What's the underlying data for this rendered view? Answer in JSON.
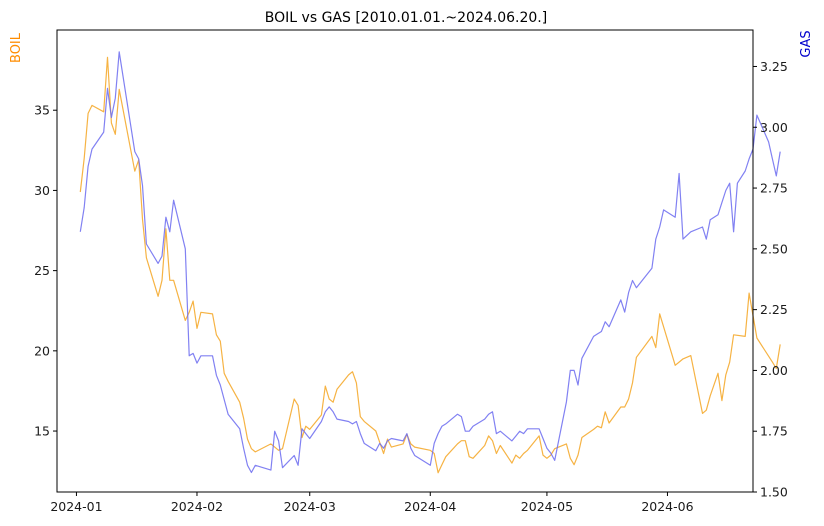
{
  "chart_data": {
    "type": "line",
    "title": "BOIL vs GAS [2010.01.01.~2024.06.20.]",
    "xlabel": "",
    "x_ticks": [
      "2024-01",
      "2024-02",
      "2024-03",
      "2024-04",
      "2024-05",
      "2024-06"
    ],
    "x_range": [
      "2023-12-27",
      "2024-06-23"
    ],
    "left_axis": {
      "label": "BOIL",
      "color": "#ff8c00",
      "ylim": [
        11.2,
        40.0
      ],
      "ticks": [
        15,
        20,
        25,
        30,
        35
      ]
    },
    "right_axis": {
      "label": "GAS",
      "color": "#0000cd",
      "ylim": [
        1.5,
        3.4
      ],
      "ticks": [
        "1.50",
        "1.75",
        "2.00",
        "2.25",
        "2.50",
        "2.75",
        "3.00",
        "3.25"
      ]
    },
    "grid": false,
    "series": [
      {
        "name": "BOIL",
        "axis": "left",
        "color": "#f5a623",
        "points": [
          [
            "2024-01-02",
            29.9
          ],
          [
            "2024-01-03",
            32.0
          ],
          [
            "2024-01-04",
            34.8
          ],
          [
            "2024-01-05",
            35.3
          ],
          [
            "2024-01-08",
            34.9
          ],
          [
            "2024-01-09",
            38.3
          ],
          [
            "2024-01-10",
            34.2
          ],
          [
            "2024-01-11",
            33.5
          ],
          [
            "2024-01-12",
            36.3
          ],
          [
            "2024-01-16",
            31.2
          ],
          [
            "2024-01-17",
            31.9
          ],
          [
            "2024-01-18",
            28.2
          ],
          [
            "2024-01-19",
            25.8
          ],
          [
            "2024-01-22",
            23.4
          ],
          [
            "2024-01-23",
            24.4
          ],
          [
            "2024-01-24",
            27.6
          ],
          [
            "2024-01-25",
            24.4
          ],
          [
            "2024-01-26",
            24.4
          ],
          [
            "2024-01-29",
            21.9
          ],
          [
            "2024-01-30",
            22.4
          ],
          [
            "2024-01-31",
            23.1
          ],
          [
            "2024-02-01",
            21.4
          ],
          [
            "2024-02-02",
            22.4
          ],
          [
            "2024-02-05",
            22.3
          ],
          [
            "2024-02-06",
            21.0
          ],
          [
            "2024-02-07",
            20.6
          ],
          [
            "2024-02-08",
            18.6
          ],
          [
            "2024-02-09",
            18.1
          ],
          [
            "2024-02-12",
            16.8
          ],
          [
            "2024-02-13",
            15.8
          ],
          [
            "2024-02-14",
            14.5
          ],
          [
            "2024-02-15",
            13.9
          ],
          [
            "2024-02-16",
            13.7
          ],
          [
            "2024-02-20",
            14.2
          ],
          [
            "2024-02-21",
            14.0
          ],
          [
            "2024-02-22",
            13.8
          ],
          [
            "2024-02-23",
            13.9
          ],
          [
            "2024-02-26",
            17.0
          ],
          [
            "2024-02-27",
            16.6
          ],
          [
            "2024-02-28",
            14.6
          ],
          [
            "2024-02-29",
            15.3
          ],
          [
            "2024-03-01",
            15.1
          ],
          [
            "2024-03-04",
            16.0
          ],
          [
            "2024-03-05",
            17.8
          ],
          [
            "2024-03-06",
            17.0
          ],
          [
            "2024-03-07",
            16.8
          ],
          [
            "2024-03-08",
            17.6
          ],
          [
            "2024-03-11",
            18.5
          ],
          [
            "2024-03-12",
            18.7
          ],
          [
            "2024-03-13",
            18.0
          ],
          [
            "2024-03-14",
            15.9
          ],
          [
            "2024-03-15",
            15.6
          ],
          [
            "2024-03-18",
            15.0
          ],
          [
            "2024-03-19",
            14.3
          ],
          [
            "2024-03-20",
            13.6
          ],
          [
            "2024-03-21",
            14.5
          ],
          [
            "2024-03-22",
            14.0
          ],
          [
            "2024-03-25",
            14.2
          ],
          [
            "2024-03-26",
            14.8
          ],
          [
            "2024-03-27",
            14.2
          ],
          [
            "2024-03-28",
            14.0
          ],
          [
            "2024-04-01",
            13.8
          ],
          [
            "2024-04-02",
            13.6
          ],
          [
            "2024-04-03",
            12.4
          ],
          [
            "2024-04-04",
            12.9
          ],
          [
            "2024-04-05",
            13.4
          ],
          [
            "2024-04-08",
            14.2
          ],
          [
            "2024-04-09",
            14.4
          ],
          [
            "2024-04-10",
            14.4
          ],
          [
            "2024-04-11",
            13.4
          ],
          [
            "2024-04-12",
            13.3
          ],
          [
            "2024-04-15",
            14.1
          ],
          [
            "2024-04-16",
            14.7
          ],
          [
            "2024-04-17",
            14.4
          ],
          [
            "2024-04-18",
            13.6
          ],
          [
            "2024-04-19",
            14.1
          ],
          [
            "2024-04-22",
            13.0
          ],
          [
            "2024-04-23",
            13.5
          ],
          [
            "2024-04-24",
            13.3
          ],
          [
            "2024-04-25",
            13.6
          ],
          [
            "2024-04-26",
            13.8
          ],
          [
            "2024-04-29",
            14.7
          ],
          [
            "2024-04-30",
            13.5
          ],
          [
            "2024-05-01",
            13.3
          ],
          [
            "2024-05-02",
            13.5
          ],
          [
            "2024-05-03",
            13.9
          ],
          [
            "2024-05-06",
            14.2
          ],
          [
            "2024-05-07",
            13.3
          ],
          [
            "2024-05-08",
            12.9
          ],
          [
            "2024-05-09",
            13.5
          ],
          [
            "2024-05-10",
            14.6
          ],
          [
            "2024-05-13",
            15.1
          ],
          [
            "2024-05-14",
            15.3
          ],
          [
            "2024-05-15",
            15.2
          ],
          [
            "2024-05-16",
            16.2
          ],
          [
            "2024-05-17",
            15.5
          ],
          [
            "2024-05-20",
            16.5
          ],
          [
            "2024-05-21",
            16.5
          ],
          [
            "2024-05-22",
            17.0
          ],
          [
            "2024-05-23",
            18.0
          ],
          [
            "2024-05-24",
            19.6
          ],
          [
            "2024-05-28",
            20.9
          ],
          [
            "2024-05-29",
            20.2
          ],
          [
            "2024-05-30",
            22.3
          ],
          [
            "2024-05-31",
            21.5
          ],
          [
            "2024-06-03",
            19.1
          ],
          [
            "2024-06-04",
            19.3
          ],
          [
            "2024-06-05",
            19.5
          ],
          [
            "2024-06-07",
            19.7
          ],
          [
            "2024-06-10",
            16.1
          ],
          [
            "2024-06-11",
            16.3
          ],
          [
            "2024-06-12",
            17.2
          ],
          [
            "2024-06-14",
            18.6
          ],
          [
            "2024-06-15",
            16.9
          ],
          [
            "2024-06-16",
            18.5
          ],
          [
            "2024-06-17",
            19.3
          ],
          [
            "2024-06-18",
            21.0
          ],
          [
            "2024-06-21",
            20.9
          ],
          [
            "2024-06-22",
            23.6
          ],
          [
            "2024-06-24",
            20.8
          ],
          [
            "2024-06-28",
            19.3
          ],
          [
            "2024-06-29",
            18.9
          ],
          [
            "2024-06-30",
            20.4
          ]
        ]
      },
      {
        "name": "GAS",
        "axis": "right",
        "color": "#6b6bf0",
        "points": [
          [
            "2024-01-02",
            2.57
          ],
          [
            "2024-01-03",
            2.67
          ],
          [
            "2024-01-04",
            2.84
          ],
          [
            "2024-01-05",
            2.91
          ],
          [
            "2024-01-08",
            2.98
          ],
          [
            "2024-01-09",
            3.16
          ],
          [
            "2024-01-10",
            3.04
          ],
          [
            "2024-01-11",
            3.12
          ],
          [
            "2024-01-12",
            3.31
          ],
          [
            "2024-01-16",
            2.9
          ],
          [
            "2024-01-17",
            2.87
          ],
          [
            "2024-01-18",
            2.76
          ],
          [
            "2024-01-19",
            2.52
          ],
          [
            "2024-01-22",
            2.44
          ],
          [
            "2024-01-23",
            2.47
          ],
          [
            "2024-01-24",
            2.63
          ],
          [
            "2024-01-25",
            2.57
          ],
          [
            "2024-01-26",
            2.7
          ],
          [
            "2024-01-29",
            2.5
          ],
          [
            "2024-01-30",
            2.06
          ],
          [
            "2024-01-31",
            2.07
          ],
          [
            "2024-02-01",
            2.03
          ],
          [
            "2024-02-02",
            2.06
          ],
          [
            "2024-02-05",
            2.06
          ],
          [
            "2024-02-06",
            1.98
          ],
          [
            "2024-02-07",
            1.94
          ],
          [
            "2024-02-08",
            1.88
          ],
          [
            "2024-02-09",
            1.82
          ],
          [
            "2024-02-12",
            1.76
          ],
          [
            "2024-02-13",
            1.68
          ],
          [
            "2024-02-14",
            1.61
          ],
          [
            "2024-02-15",
            1.58
          ],
          [
            "2024-02-16",
            1.61
          ],
          [
            "2024-02-20",
            1.59
          ],
          [
            "2024-02-21",
            1.75
          ],
          [
            "2024-02-22",
            1.71
          ],
          [
            "2024-02-23",
            1.6
          ],
          [
            "2024-02-26",
            1.65
          ],
          [
            "2024-02-27",
            1.61
          ],
          [
            "2024-02-28",
            1.76
          ],
          [
            "2024-02-29",
            1.74
          ],
          [
            "2024-03-01",
            1.72
          ],
          [
            "2024-03-04",
            1.79
          ],
          [
            "2024-03-05",
            1.83
          ],
          [
            "2024-03-06",
            1.85
          ],
          [
            "2024-03-07",
            1.83
          ],
          [
            "2024-03-08",
            1.8
          ],
          [
            "2024-03-11",
            1.79
          ],
          [
            "2024-03-12",
            1.78
          ],
          [
            "2024-03-13",
            1.79
          ],
          [
            "2024-03-14",
            1.74
          ],
          [
            "2024-03-15",
            1.7
          ],
          [
            "2024-03-18",
            1.67
          ],
          [
            "2024-03-19",
            1.7
          ],
          [
            "2024-03-20",
            1.68
          ],
          [
            "2024-03-21",
            1.71
          ],
          [
            "2024-03-22",
            1.72
          ],
          [
            "2024-03-25",
            1.71
          ],
          [
            "2024-03-26",
            1.74
          ],
          [
            "2024-03-27",
            1.68
          ],
          [
            "2024-03-28",
            1.65
          ],
          [
            "2024-04-01",
            1.61
          ],
          [
            "2024-04-02",
            1.7
          ],
          [
            "2024-04-03",
            1.74
          ],
          [
            "2024-04-04",
            1.77
          ],
          [
            "2024-04-05",
            1.78
          ],
          [
            "2024-04-08",
            1.82
          ],
          [
            "2024-04-09",
            1.81
          ],
          [
            "2024-04-10",
            1.75
          ],
          [
            "2024-04-11",
            1.75
          ],
          [
            "2024-04-12",
            1.77
          ],
          [
            "2024-04-15",
            1.8
          ],
          [
            "2024-04-16",
            1.82
          ],
          [
            "2024-04-17",
            1.83
          ],
          [
            "2024-04-18",
            1.74
          ],
          [
            "2024-04-19",
            1.75
          ],
          [
            "2024-04-22",
            1.71
          ],
          [
            "2024-04-23",
            1.73
          ],
          [
            "2024-04-24",
            1.75
          ],
          [
            "2024-04-25",
            1.74
          ],
          [
            "2024-04-26",
            1.76
          ],
          [
            "2024-04-29",
            1.76
          ],
          [
            "2024-04-30",
            1.72
          ],
          [
            "2024-05-01",
            1.68
          ],
          [
            "2024-05-02",
            1.66
          ],
          [
            "2024-05-03",
            1.63
          ],
          [
            "2024-05-06",
            1.87
          ],
          [
            "2024-05-07",
            2.0
          ],
          [
            "2024-05-08",
            2.0
          ],
          [
            "2024-05-09",
            1.94
          ],
          [
            "2024-05-10",
            2.05
          ],
          [
            "2024-05-13",
            2.14
          ],
          [
            "2024-05-14",
            2.15
          ],
          [
            "2024-05-15",
            2.16
          ],
          [
            "2024-05-16",
            2.2
          ],
          [
            "2024-05-17",
            2.18
          ],
          [
            "2024-05-20",
            2.29
          ],
          [
            "2024-05-21",
            2.24
          ],
          [
            "2024-05-22",
            2.32
          ],
          [
            "2024-05-23",
            2.37
          ],
          [
            "2024-05-24",
            2.34
          ],
          [
            "2024-05-28",
            2.42
          ],
          [
            "2024-05-29",
            2.54
          ],
          [
            "2024-05-30",
            2.59
          ],
          [
            "2024-05-31",
            2.66
          ],
          [
            "2024-06-03",
            2.63
          ],
          [
            "2024-06-04",
            2.81
          ],
          [
            "2024-06-05",
            2.54
          ],
          [
            "2024-06-07",
            2.57
          ],
          [
            "2024-06-10",
            2.59
          ],
          [
            "2024-06-11",
            2.54
          ],
          [
            "2024-06-12",
            2.62
          ],
          [
            "2024-06-14",
            2.64
          ],
          [
            "2024-06-15",
            2.69
          ],
          [
            "2024-06-16",
            2.74
          ],
          [
            "2024-06-17",
            2.77
          ],
          [
            "2024-06-18",
            2.57
          ],
          [
            "2024-06-19",
            2.77
          ],
          [
            "2024-06-21",
            2.82
          ],
          [
            "2024-06-22",
            2.87
          ],
          [
            "2024-06-23",
            2.91
          ],
          [
            "2024-06-24",
            3.05
          ],
          [
            "2024-06-27",
            2.94
          ],
          [
            "2024-06-28",
            2.87
          ],
          [
            "2024-06-29",
            2.8
          ],
          [
            "2024-06-30",
            2.9
          ]
        ]
      }
    ]
  }
}
